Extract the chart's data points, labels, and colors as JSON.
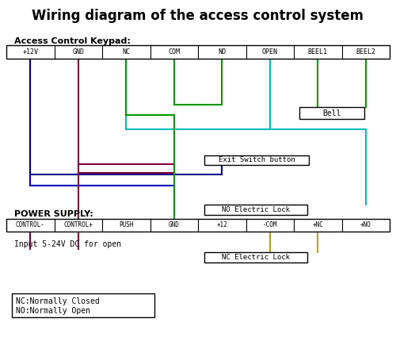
{
  "title": "Wiring diagram of the access control system",
  "title_fontsize": 12,
  "keypad_label": "Access Control Keypad:",
  "keypad_terminals": [
    "+12V",
    "GND",
    "NC",
    "COM",
    "NO",
    "OPEN",
    "BEEL1",
    "BEEL2"
  ],
  "power_label": "POWER SUPPLY:",
  "power_terminals": [
    "CONTROL-",
    "CONTROL+",
    "PUSH",
    "GND",
    "+12",
    "-COM",
    "+NC",
    "+NO"
  ],
  "input_text": "Input 5-24V DC for open",
  "bell_label": "Bell",
  "exit_label": "Exit Switch button",
  "no_lock_label": "NO Electric Lock",
  "nc_lock_label": "NC Electric Lock",
  "legend_line1": "NC:Normally Closed",
  "legend_line2": "NO:Normally Open",
  "wire_blue": "#0000bb",
  "wire_navy": "#000080",
  "wire_maroon": "#800040",
  "wire_cyan": "#00bbbb",
  "wire_green": "#009900",
  "wire_yellow": "#aaaa00"
}
